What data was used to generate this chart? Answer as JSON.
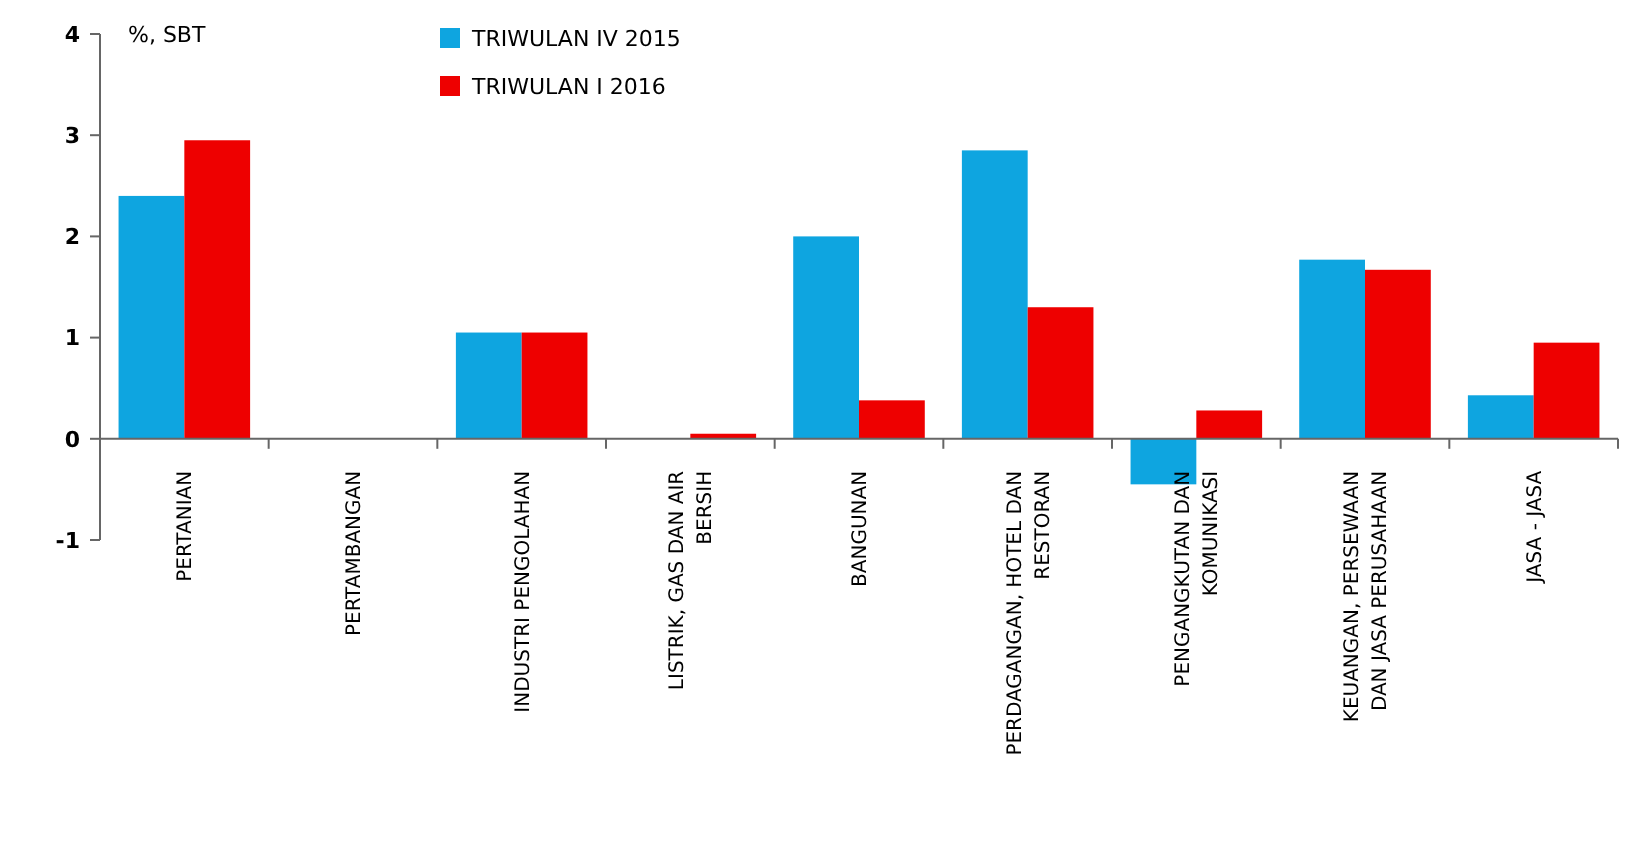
{
  "chart_data": {
    "type": "bar",
    "ylabel": "%, SBT",
    "categories": [
      "PERTANIAN",
      "PERTAMBANGAN",
      "INDUSTRI PENGOLAHAN",
      "LISTRIK, GAS DAN AIR BERSIH",
      "BANGUNAN",
      "PERDAGANGAN, HOTEL DAN RESTORAN",
      "PENGANGKUTAN DAN KOMUNIKASI",
      "KEUANGAN, PERSEWAAN DAN JASA PERUSAHAAN",
      "JASA - JASA"
    ],
    "series": [
      {
        "name": "TRIWULAN IV 2015",
        "color": "#0ea5e0",
        "values": [
          2.4,
          0,
          1.05,
          0,
          2.0,
          2.85,
          -0.45,
          1.77,
          0.43
        ]
      },
      {
        "name": "TRIWULAN I 2016",
        "color": "#ee0000",
        "values": [
          2.95,
          0,
          1.05,
          0.05,
          0.38,
          1.3,
          0.28,
          1.67,
          0.95
        ]
      }
    ],
    "ylim": [
      -1,
      4
    ],
    "yticks": [
      -1,
      0,
      1,
      2,
      3,
      4
    ],
    "grid": false,
    "legend": "top"
  }
}
